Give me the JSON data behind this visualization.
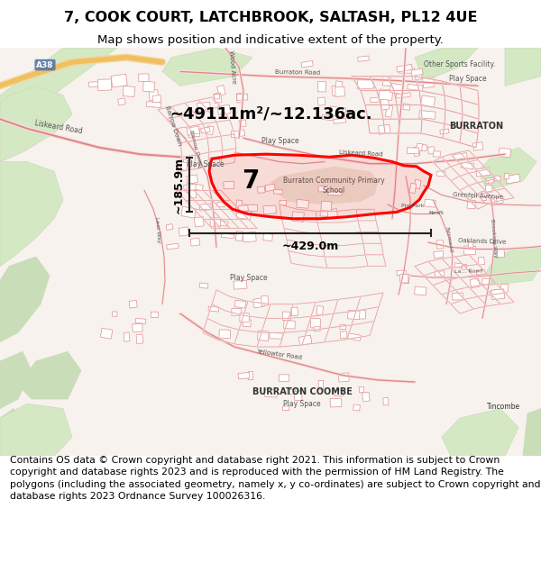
{
  "title": "7, COOK COURT, LATCHBROOK, SALTASH, PL12 4UE",
  "subtitle": "Map shows position and indicative extent of the property.",
  "footer": "Contains OS data © Crown copyright and database right 2021. This information is subject to Crown copyright and database rights 2023 and is reproduced with the permission of HM Land Registry. The polygons (including the associated geometry, namely x, y co-ordinates) are subject to Crown copyright and database rights 2023 Ordnance Survey 100026316.",
  "area_label": "~49111m²/~12.136ac.",
  "width_label": "~429.0m",
  "height_label": "~185.9m",
  "plot_number": "7",
  "bg_color": "#ffffff",
  "map_bg": "#f7f2ed",
  "road_color": "#f0c8c8",
  "road_edge": "#e08888",
  "building_fill": "#ffffff",
  "building_edge": "#e09090",
  "green_color": "#d4e8c4",
  "green2_color": "#c8ddb8",
  "a38_color": "#6699cc",
  "title_fontsize": 11.5,
  "subtitle_fontsize": 9.5,
  "footer_fontsize": 7.8,
  "label_color": "#555555",
  "dim_arrow_color": "#222222",
  "red_poly_color": "#ff0000",
  "school_fill": "#e8ddd0"
}
